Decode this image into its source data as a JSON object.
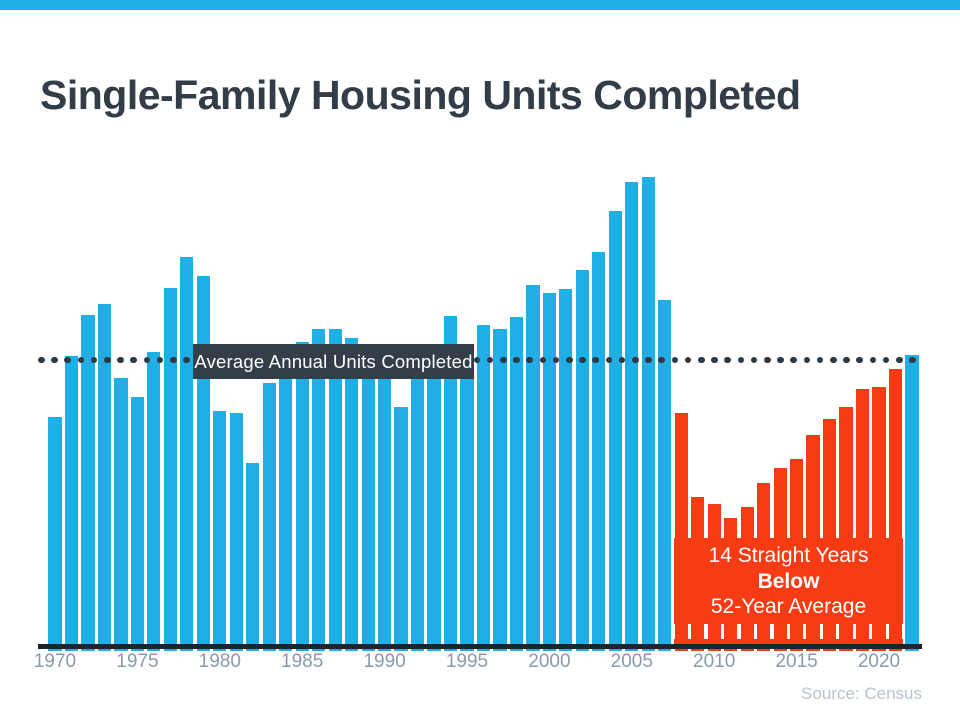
{
  "header": {
    "title": "Single-Family Housing Units Completed"
  },
  "average_label": "Average Annual Units Completed",
  "annotation": {
    "line1": "14 Straight Years",
    "line2": "Below",
    "line3": "52-Year Average"
  },
  "footer": {
    "source": "Source: Census"
  },
  "colors": {
    "accent_blue": "#20aee6",
    "below_average_red": "#f73b14",
    "dark_slate": "#323d47",
    "dotted_line": "#2e3a44",
    "axis_line": "#1a242e",
    "tick_label": "#8a99ac",
    "source_text": "#b8c2cc",
    "label_box_bg": "#333e48",
    "annotation_text": "#ffffff"
  },
  "chart_data": {
    "type": "bar",
    "title": "Single-Family Housing Units Completed",
    "x": [
      1970,
      1971,
      1972,
      1973,
      1974,
      1975,
      1976,
      1977,
      1978,
      1979,
      1980,
      1981,
      1982,
      1983,
      1984,
      1985,
      1986,
      1987,
      1988,
      1989,
      1990,
      1991,
      1992,
      1993,
      1994,
      1995,
      1996,
      1997,
      1998,
      1999,
      2000,
      2001,
      2002,
      2003,
      2004,
      2005,
      2006,
      2007,
      2008,
      2009,
      2010,
      2011,
      2012,
      2013,
      2014,
      2015,
      2016,
      2017,
      2018,
      2019,
      2020,
      2021,
      2022
    ],
    "values": [
      802,
      1014,
      1159,
      1197,
      938,
      872,
      1029,
      1253,
      1362,
      1295,
      822,
      816,
      641,
      921,
      1035,
      1065,
      1110,
      1108,
      1078,
      1043,
      1000,
      838,
      965,
      1040,
      1155,
      1050,
      1124,
      1109,
      1153,
      1264,
      1237,
      1249,
      1316,
      1380,
      1524,
      1625,
      1643,
      1211,
      816,
      523,
      497,
      449,
      488,
      570,
      622,
      654,
      739,
      794,
      838,
      899,
      908,
      969,
      1019
    ],
    "value_unit": "thousands of units (estimated from bar heights; no y-axis shown in chart)",
    "bar_color_default": "#20aee6",
    "bar_color_below_average": "#f73b14",
    "below_average_years": [
      2008,
      2021
    ],
    "average_line": {
      "value": 1001,
      "style": "dotted",
      "label": "Average Annual Units Completed"
    },
    "x_ticks": [
      "1970",
      "1975",
      "1980",
      "1985",
      "1990",
      "1995",
      "2000",
      "2005",
      "2010",
      "2015",
      "2020"
    ],
    "legend": "none",
    "grid": "off",
    "annotation_on_red_block": [
      "14 Straight Years",
      "Below",
      "52-Year Average"
    ],
    "source": "Source: Census"
  }
}
